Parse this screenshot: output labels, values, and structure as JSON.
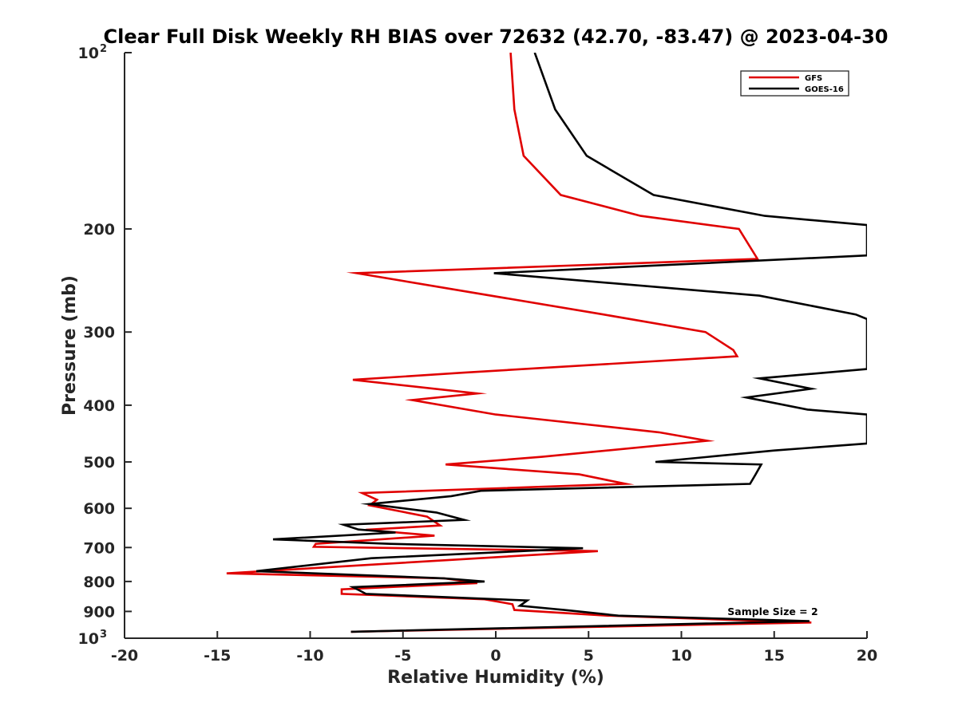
{
  "chart_data": {
    "type": "line",
    "title": "Clear Full Disk Weekly RH BIAS over 72632 (42.70, -83.47) @ 2023-04-30",
    "xlabel": "Relative Humidity (%)",
    "ylabel": "Pressure (mb)",
    "xlim": [
      -20,
      20
    ],
    "ylim": [
      100,
      1000
    ],
    "y_scale": "log",
    "y_reversed": true,
    "grid": false,
    "legend_position": "top-right",
    "x_ticks": [
      "-20",
      "-15",
      "-10",
      "-5",
      "0",
      "5",
      "10",
      "15",
      "20"
    ],
    "y_ticks": [
      {
        "value": 100,
        "base": "10",
        "exp": "2"
      },
      {
        "value": 200,
        "label": "200"
      },
      {
        "value": 300,
        "label": "300"
      },
      {
        "value": 400,
        "label": "400"
      },
      {
        "value": 500,
        "label": "500"
      },
      {
        "value": 600,
        "label": "600"
      },
      {
        "value": 700,
        "label": "700"
      },
      {
        "value": 800,
        "label": "800"
      },
      {
        "value": 900,
        "label": "900"
      },
      {
        "value": 1000,
        "base": "10",
        "exp": "3"
      }
    ],
    "annotation": "Sample Size = 2",
    "series": [
      {
        "name": "GFS",
        "color": "#e00000",
        "points": [
          [
            0.8,
            100
          ],
          [
            1.0,
            125
          ],
          [
            1.5,
            150
          ],
          [
            3.5,
            175
          ],
          [
            7.8,
            190
          ],
          [
            13.1,
            200
          ],
          [
            14.1,
            225
          ],
          [
            -7.5,
            238
          ],
          [
            5.8,
            280
          ],
          [
            11.3,
            300
          ],
          [
            12.8,
            322
          ],
          [
            13.0,
            330
          ],
          [
            -1.8,
            352
          ],
          [
            -7.7,
            362
          ],
          [
            -1.0,
            382
          ],
          [
            -4.5,
            392
          ],
          [
            0.0,
            415
          ],
          [
            8.8,
            445
          ],
          [
            11.4,
            460
          ],
          [
            2.5,
            490
          ],
          [
            -2.7,
            505
          ],
          [
            4.5,
            525
          ],
          [
            7.0,
            545
          ],
          [
            -7.2,
            565
          ],
          [
            -6.4,
            580
          ],
          [
            -6.8,
            593
          ],
          [
            -3.7,
            620
          ],
          [
            -3.0,
            642
          ],
          [
            -7.0,
            653
          ],
          [
            -3.3,
            668
          ],
          [
            -9.7,
            690
          ],
          [
            -9.8,
            698
          ],
          [
            5.5,
            710
          ],
          [
            -2.5,
            735
          ],
          [
            -14.5,
            775
          ],
          [
            -2.8,
            790
          ],
          [
            -1.0,
            805
          ],
          [
            -8.3,
            825
          ],
          [
            -8.3,
            840
          ],
          [
            -0.6,
            858
          ],
          [
            0.9,
            875
          ],
          [
            1.0,
            895
          ],
          [
            6.0,
            915
          ],
          [
            17.0,
            940
          ],
          [
            -7.8,
            975
          ]
        ]
      },
      {
        "name": "GOES-16",
        "color": "#000000",
        "points": [
          [
            2.1,
            100
          ],
          [
            3.2,
            125
          ],
          [
            4.9,
            150
          ],
          [
            8.5,
            175
          ],
          [
            14.5,
            190
          ],
          [
            20,
            197
          ],
          [
            20,
            222
          ],
          [
            -0.1,
            238
          ],
          [
            14.2,
            260
          ],
          [
            19.4,
            280
          ],
          [
            20,
            285
          ],
          [
            20,
            347
          ],
          [
            14.2,
            360
          ],
          [
            17.0,
            375
          ],
          [
            13.5,
            388
          ],
          [
            16.8,
            407
          ],
          [
            20,
            415
          ],
          [
            20,
            465
          ],
          [
            15.0,
            478
          ],
          [
            8.6,
            500
          ],
          [
            14.3,
            505
          ],
          [
            14.0,
            525
          ],
          [
            13.7,
            545
          ],
          [
            -0.8,
            560
          ],
          [
            -2.4,
            572
          ],
          [
            -6.8,
            590
          ],
          [
            -3.2,
            610
          ],
          [
            -1.7,
            628
          ],
          [
            -8.2,
            640
          ],
          [
            -7.4,
            652
          ],
          [
            -5.4,
            660
          ],
          [
            -12.0,
            678
          ],
          [
            -5.7,
            690
          ],
          [
            4.7,
            702
          ],
          [
            -6.7,
            730
          ],
          [
            -12.9,
            768
          ],
          [
            -2.8,
            790
          ],
          [
            -0.6,
            800
          ],
          [
            -7.7,
            818
          ],
          [
            -7.3,
            830
          ],
          [
            -7.0,
            840
          ],
          [
            1.7,
            862
          ],
          [
            1.3,
            880
          ],
          [
            3.7,
            895
          ],
          [
            6.6,
            915
          ],
          [
            16.9,
            935
          ],
          [
            -7.8,
            975
          ]
        ]
      }
    ]
  }
}
